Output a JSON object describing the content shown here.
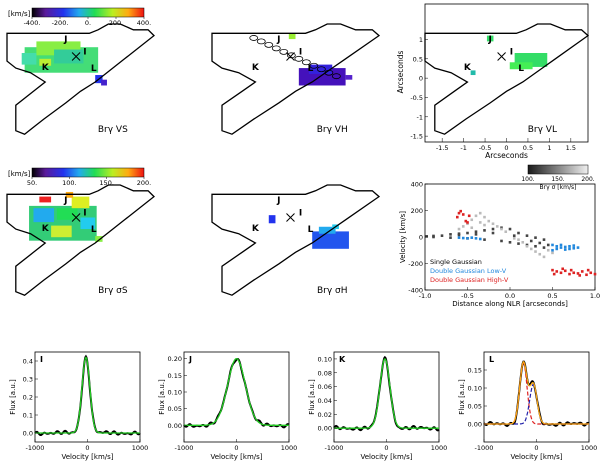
{
  "cbar_units": "[km/s]",
  "vel_cbar": {
    "ticks": [
      "-400.",
      "-200.",
      "0.",
      "200.",
      "400."
    ]
  },
  "sig_cbar": {
    "ticks": [
      "50.",
      "100.",
      "150.",
      "200."
    ]
  },
  "gray_cbar": {
    "ticks": [
      "100.",
      "150.",
      "200."
    ],
    "label": "Brγ  σ [km/s]"
  },
  "knots": [
    "I",
    "J",
    "K",
    "L"
  ],
  "maps": [
    {
      "label": "Brγ  VS"
    },
    {
      "label": "Brγ  VH"
    },
    {
      "label": "Brγ  VL"
    },
    {
      "label": "Brγ  σS"
    },
    {
      "label": "Brγ  σH"
    }
  ],
  "vl_axes": {
    "xlabel": "Arcseconds",
    "ylabel": "Arcseconds",
    "xticks": [
      -1.5,
      -1.0,
      -0.5,
      0.0,
      0.5,
      1.0,
      1.5
    ],
    "yticks": [
      -1.5,
      -1.0,
      -0.5,
      0.0,
      0.5,
      1.0
    ]
  },
  "colors": {
    "blue_fit": "#2288dd",
    "red_fit": "#dd2222",
    "green_fit": "#22cc22",
    "data": "#000000"
  },
  "chart_data": [
    {
      "type": "scatter",
      "xlabel": "Distance along NLR [arcseconds]",
      "ylabel": "Velocity [km/s]",
      "xlim": [
        -1.0,
        1.0
      ],
      "ylim": [
        -400,
        400
      ],
      "xticks": [
        "-1.0",
        "-0.5",
        "0.0",
        "0.5",
        "1.0"
      ],
      "yticks": [
        "-400",
        "-200",
        "0",
        "200",
        "400"
      ],
      "legend": [
        "Single Gaussian",
        "Double Gaussian Low-V",
        "Double Gaussian High-V"
      ],
      "legend_colors": [
        "#000000",
        "#2288dd",
        "#dd2222"
      ],
      "series": [
        {
          "color": "#444444",
          "points": [
            [
              -0.98,
              5
            ],
            [
              -0.9,
              8
            ],
            [
              -0.8,
              10
            ],
            [
              -0.7,
              20
            ],
            [
              -0.6,
              25
            ],
            [
              -0.5,
              30
            ],
            [
              -0.4,
              40
            ],
            [
              -0.3,
              50
            ],
            [
              -0.2,
              60
            ],
            [
              -0.1,
              70
            ],
            [
              0.0,
              60
            ],
            [
              0.1,
              30
            ],
            [
              0.2,
              10
            ],
            [
              0.3,
              -5
            ],
            [
              0.4,
              -20
            ],
            [
              -0.9,
              0
            ],
            [
              -0.7,
              -5
            ],
            [
              -0.5,
              -10
            ],
            [
              -0.3,
              -20
            ],
            [
              -0.1,
              -30
            ],
            [
              0.0,
              -40
            ],
            [
              0.1,
              -50
            ],
            [
              0.2,
              -60
            ],
            [
              0.3,
              -70
            ],
            [
              0.4,
              -80
            ],
            [
              -0.6,
              15
            ],
            [
              -0.4,
              20
            ],
            [
              -0.2,
              30
            ],
            [
              0.05,
              10
            ],
            [
              0.25,
              -30
            ],
            [
              0.35,
              -45
            ],
            [
              0.45,
              -60
            ]
          ]
        },
        {
          "color": "#bbbbbb",
          "points": [
            [
              -0.45,
              130
            ],
            [
              -0.4,
              160
            ],
            [
              -0.35,
              180
            ],
            [
              -0.3,
              150
            ],
            [
              -0.25,
              120
            ],
            [
              -0.2,
              100
            ],
            [
              -0.15,
              80
            ],
            [
              -0.1,
              60
            ],
            [
              -0.05,
              40
            ],
            [
              -0.5,
              100
            ],
            [
              -0.55,
              80
            ],
            [
              -0.6,
              60
            ],
            [
              0.1,
              -20
            ],
            [
              0.15,
              -40
            ],
            [
              0.2,
              -70
            ],
            [
              0.25,
              -90
            ],
            [
              0.3,
              -110
            ],
            [
              0.35,
              -130
            ],
            [
              0.4,
              -150
            ],
            [
              -0.35,
              110
            ],
            [
              -0.3,
              90
            ],
            [
              -0.45,
              70
            ],
            [
              0.05,
              -10
            ],
            [
              0.45,
              -100
            ],
            [
              0.5,
              -120
            ]
          ]
        },
        {
          "color": "#2288dd",
          "points": [
            [
              -0.6,
              -5
            ],
            [
              -0.55,
              -8
            ],
            [
              -0.5,
              -10
            ],
            [
              -0.45,
              -5
            ],
            [
              -0.4,
              -10
            ],
            [
              -0.35,
              -15
            ],
            [
              0.5,
              -60
            ],
            [
              0.55,
              -70
            ],
            [
              0.6,
              -80
            ],
            [
              0.65,
              -75
            ],
            [
              0.7,
              -90
            ],
            [
              0.75,
              -85
            ],
            [
              0.8,
              -80
            ],
            [
              0.5,
              -100
            ],
            [
              0.6,
              -60
            ],
            [
              0.7,
              -70
            ],
            [
              0.55,
              -90
            ],
            [
              0.65,
              -95
            ],
            [
              0.75,
              -65
            ]
          ]
        },
        {
          "color": "#dd2222",
          "points": [
            [
              -0.6,
              180
            ],
            [
              -0.58,
              195
            ],
            [
              -0.55,
              170
            ],
            [
              -0.52,
              120
            ],
            [
              -0.5,
              110
            ],
            [
              -0.48,
              160
            ],
            [
              -0.62,
              150
            ],
            [
              0.5,
              -250
            ],
            [
              0.55,
              -260
            ],
            [
              0.6,
              -270
            ],
            [
              0.65,
              -255
            ],
            [
              0.7,
              -280
            ],
            [
              0.75,
              -270
            ],
            [
              0.8,
              -275
            ],
            [
              0.85,
              -260
            ],
            [
              0.9,
              -285
            ],
            [
              0.95,
              -270
            ],
            [
              1.0,
              -280
            ],
            [
              0.52,
              -280
            ],
            [
              0.62,
              -240
            ],
            [
              0.72,
              -250
            ],
            [
              0.82,
              -290
            ],
            [
              0.92,
              -250
            ]
          ]
        }
      ]
    },
    {
      "type": "line",
      "title": "I",
      "xlabel": "Velocity [km/s]",
      "ylabel": "Flux [a.u.]",
      "xlim": [
        -1000,
        1000
      ],
      "ylim": [
        -0.05,
        0.45
      ],
      "xticks": [
        "-1000",
        "0",
        "1000"
      ],
      "yticks": [
        "0.0",
        "0.1",
        "0.2",
        "0.3",
        "0.4"
      ],
      "fit": {
        "amp": 0.42,
        "center": -30,
        "sigma": 75
      }
    },
    {
      "type": "line",
      "title": "J",
      "xlabel": "Velocity [km/s]",
      "ylabel": "Flux [a.u.]",
      "xlim": [
        -1000,
        1000
      ],
      "ylim": [
        -0.05,
        0.22
      ],
      "xticks": [
        "-1000",
        "0",
        "1000"
      ],
      "yticks": [
        "0.00",
        "0.05",
        "0.10",
        "0.15",
        "0.20"
      ],
      "fit": {
        "amp": 0.2,
        "center": 0,
        "sigma": 170
      }
    },
    {
      "type": "line",
      "title": "K",
      "xlabel": "Velocity [km/s]",
      "ylabel": "Flux [a.u.]",
      "xlim": [
        -1000,
        1000
      ],
      "ylim": [
        -0.02,
        0.11
      ],
      "xticks": [
        "-1000",
        "0",
        "1000"
      ],
      "yticks": [
        "0.00",
        "0.02",
        "0.04",
        "0.06",
        "0.08",
        "0.10"
      ],
      "fit": {
        "amp": 0.1,
        "center": -30,
        "sigma": 95
      }
    },
    {
      "type": "line",
      "title": "L",
      "xlabel": "Velocity [km/s]",
      "ylabel": "Flux [a.u.]",
      "xlim": [
        -1000,
        1000
      ],
      "ylim": [
        -0.05,
        0.2
      ],
      "xticks": [
        "-1000",
        "0",
        "1000"
      ],
      "yticks": [
        "0.00",
        "0.05",
        "0.10",
        "0.15"
      ],
      "components": [
        {
          "color": "#dd2222",
          "amp": 0.17,
          "center": -250,
          "sigma": 70
        },
        {
          "color": "#2222aa",
          "amp": 0.11,
          "center": -60,
          "sigma": 70
        }
      ],
      "fit_combined": true
    }
  ]
}
